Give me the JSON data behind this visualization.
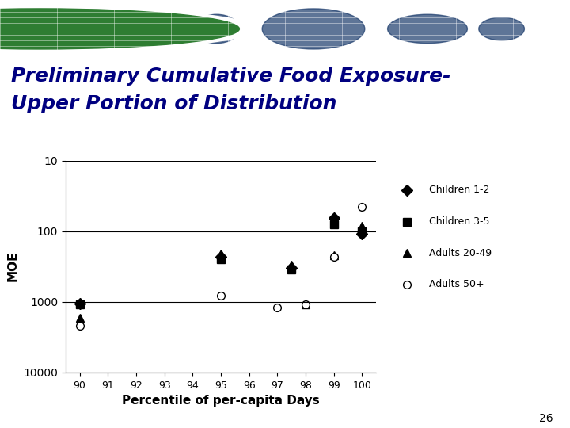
{
  "title_line1": "Preliminary Cumulative Food Exposure-",
  "title_line2": "Upper Portion of Distribution",
  "xlabel": "Percentile of per-capita Days",
  "ylabel": "MOE",
  "background_color": "#ffffff",
  "header_bg": "#b8d4e8",
  "legend_bg": "#90ee90",
  "xticks": [
    90,
    91,
    92,
    93,
    94,
    95,
    96,
    97,
    98,
    99,
    100
  ],
  "yticks": [
    10,
    100,
    1000,
    10000
  ],
  "ylim_min": 10,
  "ylim_max": 10000,
  "series": {
    "children_1_2": {
      "label": "Children 1-2",
      "marker": "D",
      "color": "#000000",
      "markersize": 7,
      "x": [
        90,
        95,
        97.5,
        99,
        100
      ],
      "y": [
        1050,
        230,
        330,
        65,
        110
      ]
    },
    "children_3_5": {
      "label": "Children 3-5",
      "marker": "s",
      "color": "#000000",
      "markersize": 7,
      "x": [
        90,
        95,
        97.5,
        99,
        100
      ],
      "y": [
        1100,
        250,
        350,
        80,
        100
      ]
    },
    "adults_20_49": {
      "label": "Adults 20-49",
      "marker": "^",
      "color": "#000000",
      "markersize": 7,
      "x": [
        90,
        95,
        97.5,
        98,
        99,
        100
      ],
      "y": [
        1700,
        210,
        300,
        1100,
        220,
        85
      ]
    },
    "adults_50plus": {
      "label": "Adults 50+",
      "marker": "o",
      "color": "#000000",
      "markersize": 7,
      "markerfacecolor": "white",
      "x": [
        90,
        95,
        97,
        98,
        99,
        100
      ],
      "y": [
        2200,
        820,
        1200,
        1100,
        230,
        45
      ]
    }
  },
  "page_number": "26"
}
